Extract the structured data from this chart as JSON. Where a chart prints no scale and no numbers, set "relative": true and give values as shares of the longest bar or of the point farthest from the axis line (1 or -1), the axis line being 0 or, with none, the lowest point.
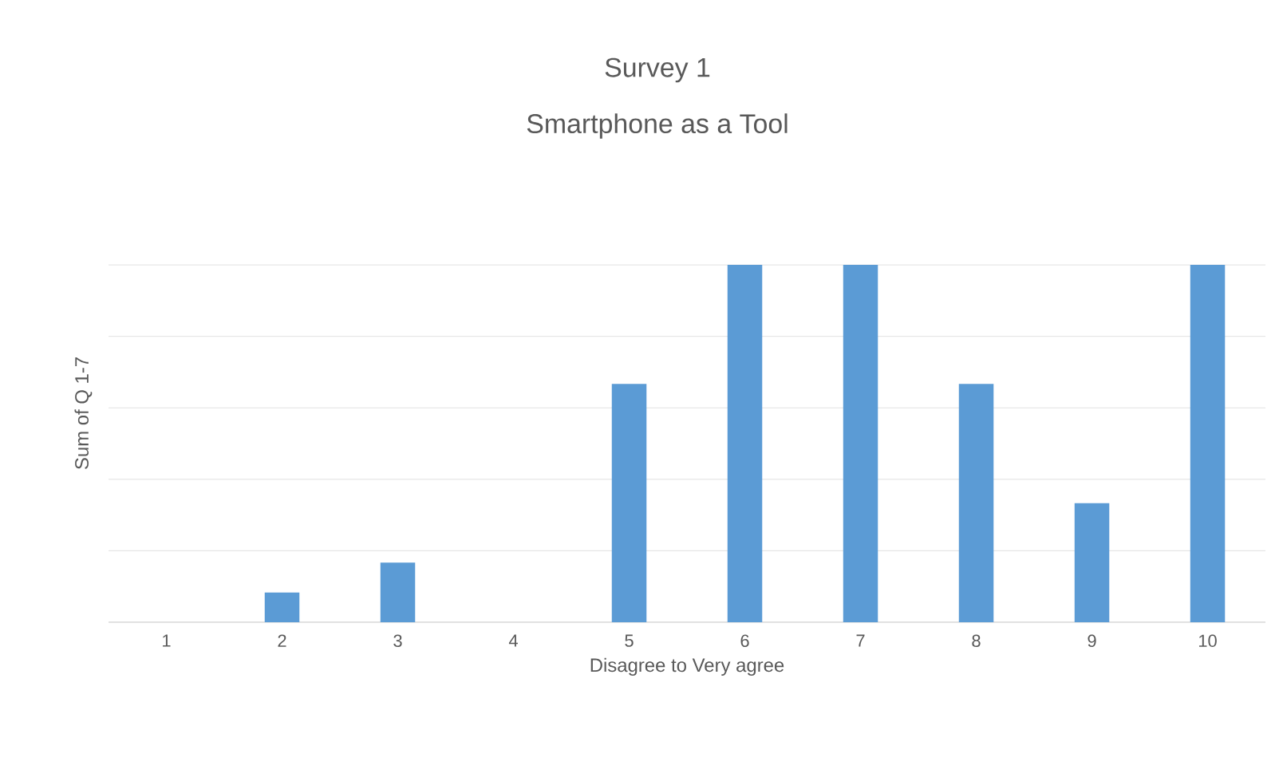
{
  "chart_data": {
    "type": "bar",
    "title": "Survey 1",
    "subtitle": "Smartphone as a Tool",
    "xlabel": "Disagree to Very agree",
    "ylabel": "Sum of Q 1-7",
    "categories": [
      "1",
      "2",
      "3",
      "4",
      "5",
      "6",
      "7",
      "8",
      "9",
      "10"
    ],
    "values": [
      0,
      0.083,
      0.167,
      0,
      0.667,
      1,
      1,
      0.667,
      0.333,
      1
    ],
    "color": "#5b9bd5",
    "relative": true,
    "grid": "y"
  }
}
